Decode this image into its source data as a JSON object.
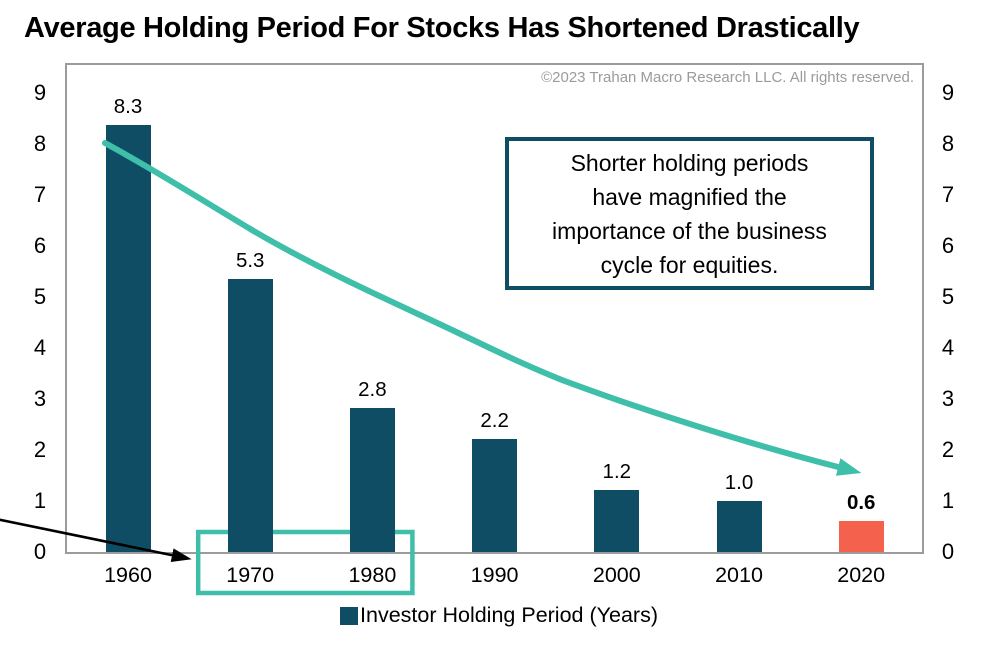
{
  "title": "Average Holding Period For Stocks Has Shortened Drastically",
  "copyright": "©2023 Trahan Macro Research LLC. All rights reserved.",
  "annotation": {
    "lines": [
      "Shorter holding periods",
      "have magnified the",
      "importance of the business",
      "cycle for equities."
    ]
  },
  "legend": {
    "label": "Investor Holding Period (Years)"
  },
  "colors": {
    "bar": "#0e4d63",
    "bar_highlight": "#f4614c",
    "accent_teal": "#3fbfaa",
    "plot_border": "#9b9b9b",
    "copyright_text": "#9b9b9b",
    "annotation_border": "#0e4d63",
    "black_arrow": "#000000"
  },
  "chart_data": {
    "type": "bar",
    "title": "Average Holding Period For Stocks Has Shortened Drastically",
    "categories": [
      "1960",
      "1970",
      "1980",
      "1990",
      "2000",
      "2010",
      "2020"
    ],
    "series": [
      {
        "name": "Investor Holding Period (Years)",
        "values": [
          8.3,
          5.3,
          2.8,
          2.2,
          1.2,
          1.0,
          0.6
        ]
      }
    ],
    "bar_labels": [
      "8.3",
      "5.3",
      "2.8",
      "2.2",
      "1.2",
      "1.0",
      "0.6"
    ],
    "highlighted_category": "2020",
    "highlight_box_categories": [
      "1970",
      "1980"
    ],
    "yticks": [
      0,
      1,
      2,
      3,
      4,
      5,
      6,
      7,
      8,
      9
    ],
    "ylim": [
      0,
      9
    ],
    "dual_y_axis": true,
    "grid": false,
    "legend_position": "bottom",
    "annotations": [
      "teal curved arrow trending down from the 1960 bar to above the 2020 bar",
      "black arrow pointing from lower-left edge to the teal box around 1970 and 1980",
      "text box: Shorter holding periods have magnified the importance of the business cycle for equities."
    ]
  }
}
